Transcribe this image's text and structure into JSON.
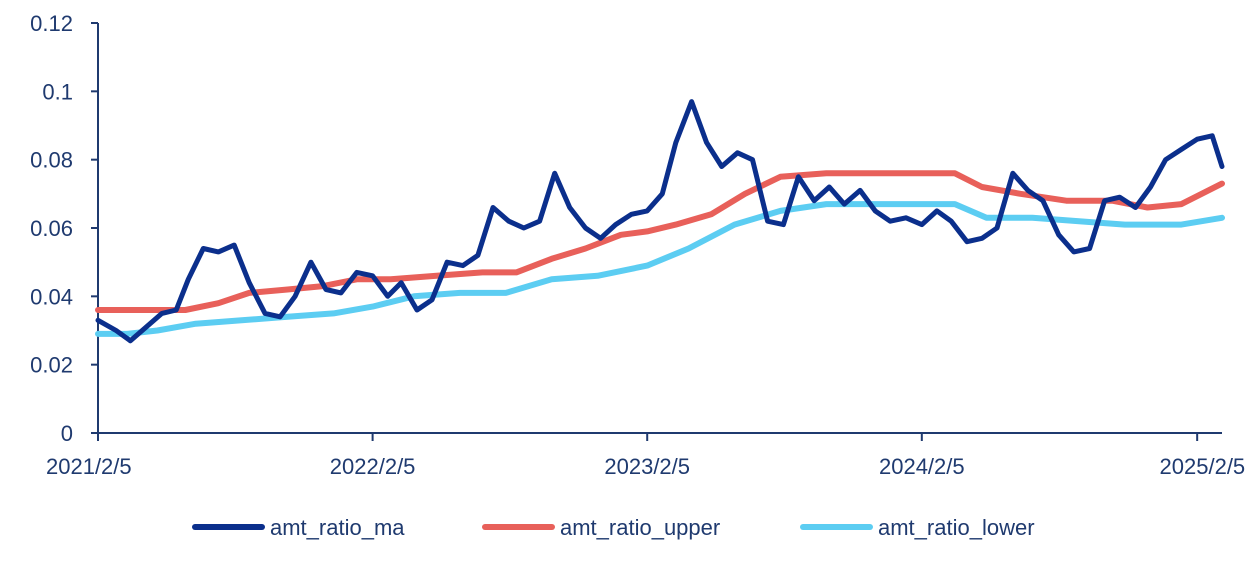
{
  "colors": {
    "axis": "#1f3a6f",
    "text": "#1f3a6f",
    "ma": "#0b2f8c",
    "upper": "#e8605a",
    "lower": "#5ccdf2"
  },
  "chart_data": {
    "type": "line",
    "title": "",
    "xlabel": "",
    "ylabel": "",
    "ylim": [
      0,
      0.12
    ],
    "xlim": [
      "2021-02-05",
      "2025-03-10"
    ],
    "grid": false,
    "legend_position": "bottom",
    "y_ticks": [
      {
        "value": 0,
        "label": "0"
      },
      {
        "value": 0.02,
        "label": "0.02"
      },
      {
        "value": 0.04,
        "label": "0.04"
      },
      {
        "value": 0.06,
        "label": "0.06"
      },
      {
        "value": 0.08,
        "label": "0.08"
      },
      {
        "value": 0.1,
        "label": "0.1"
      },
      {
        "value": 0.12,
        "label": "0.12"
      }
    ],
    "x_ticks": [
      {
        "date": "2021-02-05",
        "label": "2021/2/5"
      },
      {
        "date": "2022-02-05",
        "label": "2022/2/5"
      },
      {
        "date": "2023-02-05",
        "label": "2023/2/5"
      },
      {
        "date": "2024-02-05",
        "label": "2024/2/5"
      },
      {
        "date": "2025-02-05",
        "label": "2025/2/5"
      }
    ],
    "series": [
      {
        "name": "amt_ratio_ma",
        "color_key": "ma",
        "x": [
          "2021-02-05",
          "2021-03-01",
          "2021-03-20",
          "2021-04-10",
          "2021-05-01",
          "2021-05-20",
          "2021-06-05",
          "2021-06-25",
          "2021-07-15",
          "2021-08-05",
          "2021-08-25",
          "2021-09-15",
          "2021-10-05",
          "2021-10-25",
          "2021-11-15",
          "2021-12-05",
          "2021-12-25",
          "2022-01-15",
          "2022-02-05",
          "2022-02-25",
          "2022-03-15",
          "2022-04-05",
          "2022-04-25",
          "2022-05-15",
          "2022-06-05",
          "2022-06-25",
          "2022-07-15",
          "2022-08-05",
          "2022-08-25",
          "2022-09-15",
          "2022-10-05",
          "2022-10-25",
          "2022-11-15",
          "2022-12-05",
          "2022-12-25",
          "2023-01-15",
          "2023-02-05",
          "2023-02-25",
          "2023-03-15",
          "2023-04-05",
          "2023-04-25",
          "2023-05-15",
          "2023-06-05",
          "2023-06-25",
          "2023-07-15",
          "2023-08-05",
          "2023-08-25",
          "2023-09-15",
          "2023-10-05",
          "2023-10-25",
          "2023-11-15",
          "2023-12-05",
          "2023-12-25",
          "2024-01-15",
          "2024-02-05",
          "2024-02-25",
          "2024-03-15",
          "2024-04-05",
          "2024-04-25",
          "2024-05-15",
          "2024-06-05",
          "2024-06-25",
          "2024-07-15",
          "2024-08-05",
          "2024-08-25",
          "2024-09-15",
          "2024-10-05",
          "2024-10-25",
          "2024-11-15",
          "2024-12-05",
          "2024-12-25",
          "2025-01-15",
          "2025-02-05",
          "2025-02-25",
          "2025-03-10"
        ],
        "y": [
          0.033,
          0.03,
          0.027,
          0.031,
          0.035,
          0.036,
          0.045,
          0.054,
          0.053,
          0.055,
          0.044,
          0.035,
          0.034,
          0.04,
          0.05,
          0.042,
          0.041,
          0.047,
          0.046,
          0.04,
          0.044,
          0.036,
          0.039,
          0.05,
          0.049,
          0.052,
          0.066,
          0.062,
          0.06,
          0.062,
          0.076,
          0.066,
          0.06,
          0.057,
          0.061,
          0.064,
          0.065,
          0.07,
          0.085,
          0.097,
          0.085,
          0.078,
          0.082,
          0.08,
          0.062,
          0.061,
          0.075,
          0.068,
          0.072,
          0.067,
          0.071,
          0.065,
          0.062,
          0.063,
          0.061,
          0.065,
          0.062,
          0.056,
          0.057,
          0.06,
          0.076,
          0.071,
          0.068,
          0.058,
          0.053,
          0.054,
          0.068,
          0.069,
          0.066,
          0.072,
          0.08,
          0.083,
          0.086,
          0.087,
          0.078
        ]
      },
      {
        "name": "amt_ratio_upper",
        "color_key": "upper",
        "x": [
          "2021-02-05",
          "2021-04-15",
          "2021-06-01",
          "2021-07-15",
          "2021-08-25",
          "2021-10-15",
          "2021-12-01",
          "2022-01-15",
          "2022-03-01",
          "2022-05-01",
          "2022-07-01",
          "2022-08-15",
          "2022-10-01",
          "2022-11-15",
          "2023-01-01",
          "2023-02-05",
          "2023-03-15",
          "2023-05-01",
          "2023-06-15",
          "2023-08-01",
          "2023-10-01",
          "2023-12-01",
          "2024-02-05",
          "2024-03-20",
          "2024-04-25",
          "2024-06-15",
          "2024-08-15",
          "2024-10-15",
          "2024-12-01",
          "2025-01-15",
          "2025-03-10"
        ],
        "y": [
          0.036,
          0.036,
          0.036,
          0.038,
          0.041,
          0.042,
          0.043,
          0.045,
          0.045,
          0.046,
          0.047,
          0.047,
          0.051,
          0.054,
          0.058,
          0.059,
          0.061,
          0.064,
          0.07,
          0.075,
          0.076,
          0.076,
          0.076,
          0.076,
          0.072,
          0.07,
          0.068,
          0.068,
          0.066,
          0.067,
          0.073
        ]
      },
      {
        "name": "amt_ratio_lower",
        "color_key": "lower",
        "x": [
          "2021-02-05",
          "2021-03-15",
          "2021-04-25",
          "2021-06-15",
          "2021-08-15",
          "2021-10-15",
          "2021-12-15",
          "2022-02-05",
          "2022-04-01",
          "2022-06-01",
          "2022-08-01",
          "2022-10-01",
          "2022-12-01",
          "2023-02-05",
          "2023-04-01",
          "2023-06-01",
          "2023-08-01",
          "2023-10-01",
          "2023-12-01",
          "2024-02-05",
          "2024-03-20",
          "2024-05-01",
          "2024-07-01",
          "2024-09-01",
          "2024-11-01",
          "2024-12-15",
          "2025-01-15",
          "2025-03-10"
        ],
        "y": [
          0.029,
          0.029,
          0.03,
          0.032,
          0.033,
          0.034,
          0.035,
          0.037,
          0.04,
          0.041,
          0.041,
          0.045,
          0.046,
          0.049,
          0.054,
          0.061,
          0.065,
          0.067,
          0.067,
          0.067,
          0.067,
          0.063,
          0.063,
          0.062,
          0.061,
          0.061,
          0.061,
          0.063
        ]
      }
    ]
  }
}
